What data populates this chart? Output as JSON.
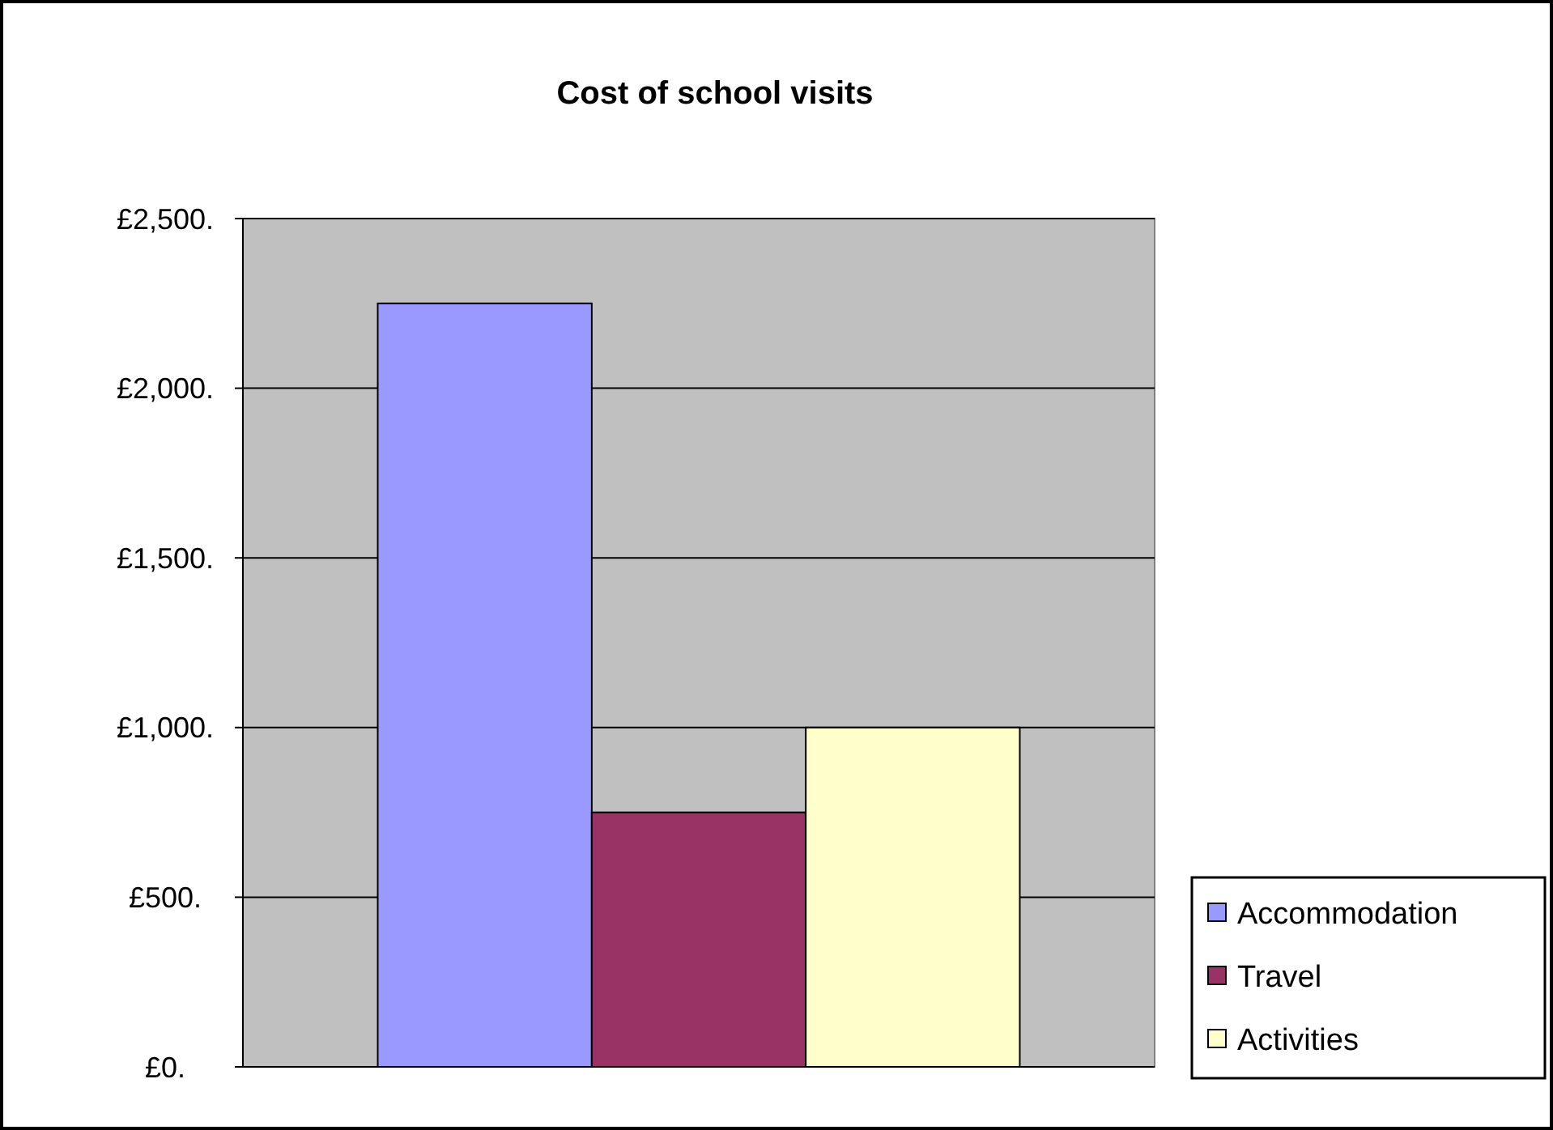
{
  "chart_data": {
    "type": "bar",
    "title": "Cost of school visits",
    "categories": [
      null
    ],
    "series": [
      {
        "name": "Accommodation",
        "color": "#9999ff",
        "values": [
          2250
        ]
      },
      {
        "name": "Travel",
        "color": "#993366",
        "values": [
          750
        ]
      },
      {
        "name": "Activities",
        "color": "#ffffcc",
        "values": [
          1000
        ]
      }
    ],
    "ylim": [
      0,
      2500
    ],
    "yticks": [
      {
        "value": 0,
        "label": "£0."
      },
      {
        "value": 500,
        "label": "£500."
      },
      {
        "value": 1000,
        "label": "£1,000."
      },
      {
        "value": 1500,
        "label": "£1,500."
      },
      {
        "value": 2000,
        "label": "£2,000."
      },
      {
        "value": 2500,
        "label": "£2,500."
      }
    ],
    "grid": "y",
    "legend": "right"
  }
}
